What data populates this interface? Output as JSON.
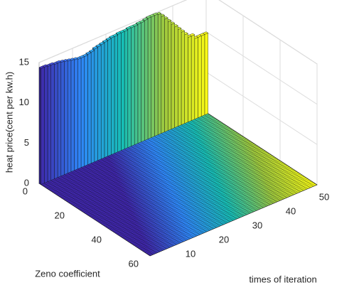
{
  "chart_data": {
    "type": "bar3",
    "zlabel": "heat price(cent per kw.h)",
    "ylabel": "Zeno coefficient",
    "xlabel": "times of iteration",
    "x": [
      1,
      2,
      3,
      4,
      5,
      6,
      7,
      8,
      9,
      10,
      11,
      12,
      13,
      14,
      15,
      16,
      17,
      18,
      19,
      20,
      21,
      22,
      23,
      24,
      25,
      26,
      27,
      28,
      29,
      30,
      31,
      32,
      33,
      34,
      35,
      36,
      37,
      38,
      39,
      40,
      41,
      42,
      43,
      44,
      45,
      46,
      47,
      48,
      49,
      50
    ],
    "values": [
      14.4,
      14.4,
      14.3,
      14.3,
      14.2,
      14.2,
      14.1,
      14.0,
      13.9,
      13.8,
      13.7,
      13.6,
      13.6,
      13.6,
      13.7,
      13.8,
      14.0,
      14.1,
      14.2,
      14.3,
      14.4,
      14.5,
      14.5,
      14.6,
      14.6,
      14.6,
      14.7,
      14.7,
      14.7,
      14.8,
      14.8,
      14.9,
      15.0,
      15.0,
      15.0,
      14.9,
      14.5,
      14.0,
      13.5,
      13.0,
      12.5,
      12.0,
      11.5,
      11.0,
      10.5,
      10.5,
      10.0,
      10.0,
      10.0,
      10.0
    ],
    "xlim": [
      0,
      50
    ],
    "xticks": [
      10,
      20,
      30,
      40,
      50
    ],
    "ylim": [
      0,
      60
    ],
    "yticks": [
      0,
      20,
      40,
      60
    ],
    "zlim": [
      0,
      15
    ],
    "zticks": [
      0,
      5,
      10,
      15
    ],
    "colormap": [
      "#3e26a8",
      "#2e87f8",
      "#17beb6",
      "#9fc93d",
      "#f9fb15"
    ],
    "grid": true
  }
}
